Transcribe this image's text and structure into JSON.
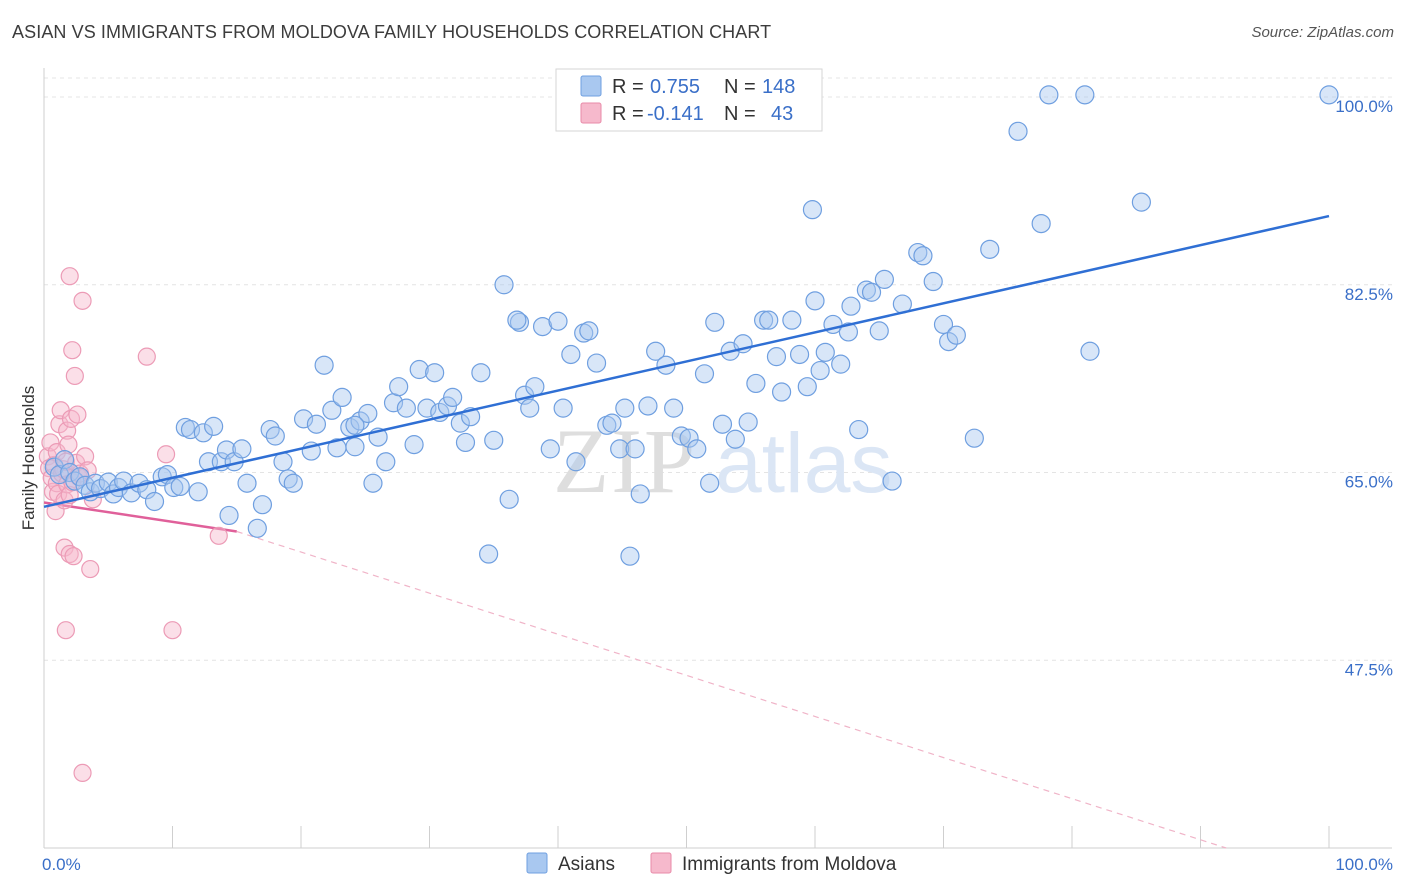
{
  "header": {
    "title": "ASIAN VS IMMIGRANTS FROM MOLDOVA FAMILY HOUSEHOLDS CORRELATION CHART",
    "source": "Source: ZipAtlas.com"
  },
  "watermark": {
    "zip": "ZIP",
    "atlas": "atlas"
  },
  "legend": {
    "rows": [
      {
        "r_label": "R = ",
        "r_value": "0.755",
        "n_label": "N = ",
        "n_value": "148",
        "color": "#a9c8f0",
        "stroke": "#6f9fe0"
      },
      {
        "r_label": "R = ",
        "r_value": "-0.141",
        "n_label": "N = ",
        "n_value": "43",
        "color": "#f6b9cc",
        "stroke": "#e88aa8"
      }
    ]
  },
  "bottom_legend": [
    {
      "label": "Asians",
      "color": "#a9c8f0",
      "stroke": "#6f9fe0"
    },
    {
      "label": "Immigrants from Moldova",
      "color": "#f6b9cc",
      "stroke": "#e88aa8"
    }
  ],
  "chart_data": {
    "type": "scatter",
    "ylabel": "Family Households",
    "xlim": [
      0,
      100
    ],
    "ylim": [
      30,
      100
    ],
    "x_tick_labels": [
      "0.0%",
      "100.0%"
    ],
    "y_ticks": [
      {
        "value": 47.5,
        "label": "47.5%"
      },
      {
        "value": 65.0,
        "label": "65.0%"
      },
      {
        "value": 82.5,
        "label": "82.5%"
      },
      {
        "value": 100.0,
        "label": "100.0%"
      }
    ],
    "grid": "horizontal dashed",
    "colors": {
      "asians": "#2f6fd4",
      "moldova": "#e0609a"
    },
    "series": [
      {
        "name": "Asians",
        "trend": {
          "x": [
            0,
            100
          ],
          "y": [
            61.8,
            88.9
          ]
        },
        "points": [
          [
            0.8,
            65.5
          ],
          [
            1.2,
            64.8
          ],
          [
            1.6,
            66.2
          ],
          [
            2.0,
            65.0
          ],
          [
            2.4,
            64.2
          ],
          [
            2.8,
            64.6
          ],
          [
            3.2,
            63.8
          ],
          [
            3.6,
            63.2
          ],
          [
            4.0,
            64.0
          ],
          [
            4.4,
            63.5
          ],
          [
            5.0,
            64.1
          ],
          [
            5.4,
            63.0
          ],
          [
            5.8,
            63.6
          ],
          [
            6.2,
            64.2
          ],
          [
            6.8,
            63.1
          ],
          [
            7.4,
            64.0
          ],
          [
            8.0,
            63.4
          ],
          [
            8.6,
            62.3
          ],
          [
            9.2,
            64.6
          ],
          [
            9.6,
            64.8
          ],
          [
            10.1,
            63.6
          ],
          [
            10.6,
            63.7
          ],
          [
            11.0,
            69.2
          ],
          [
            11.4,
            69.0
          ],
          [
            12.0,
            63.2
          ],
          [
            12.4,
            68.7
          ],
          [
            12.8,
            66.0
          ],
          [
            13.2,
            69.3
          ],
          [
            13.8,
            66.0
          ],
          [
            14.2,
            67.1
          ],
          [
            14.4,
            61.0
          ],
          [
            14.8,
            66.0
          ],
          [
            15.4,
            67.2
          ],
          [
            15.8,
            64.0
          ],
          [
            16.6,
            59.8
          ],
          [
            17.0,
            62.0
          ],
          [
            17.6,
            69.0
          ],
          [
            18.0,
            68.4
          ],
          [
            18.6,
            66.0
          ],
          [
            19.0,
            64.4
          ],
          [
            19.4,
            64.0
          ],
          [
            20.2,
            70.0
          ],
          [
            20.8,
            67.0
          ],
          [
            21.2,
            69.5
          ],
          [
            21.8,
            75.0
          ],
          [
            22.4,
            70.8
          ],
          [
            22.8,
            67.3
          ],
          [
            23.2,
            72.0
          ],
          [
            23.8,
            69.2
          ],
          [
            24.2,
            67.4
          ],
          [
            24.6,
            69.8
          ],
          [
            25.2,
            70.5
          ],
          [
            25.6,
            64.0
          ],
          [
            26.0,
            68.3
          ],
          [
            26.6,
            66.0
          ],
          [
            27.2,
            71.5
          ],
          [
            27.6,
            73.0
          ],
          [
            28.2,
            71.0
          ],
          [
            28.8,
            67.6
          ],
          [
            29.2,
            74.6
          ],
          [
            29.8,
            71.0
          ],
          [
            30.4,
            74.3
          ],
          [
            30.8,
            70.6
          ],
          [
            31.4,
            71.2
          ],
          [
            31.8,
            72.0
          ],
          [
            32.4,
            69.6
          ],
          [
            32.8,
            67.8
          ],
          [
            33.2,
            70.2
          ],
          [
            34.0,
            74.3
          ],
          [
            34.6,
            57.4
          ],
          [
            35.0,
            68.0
          ],
          [
            35.8,
            82.5
          ],
          [
            36.2,
            62.5
          ],
          [
            37.0,
            79.0
          ],
          [
            37.4,
            72.2
          ],
          [
            37.8,
            71.0
          ],
          [
            38.2,
            73.0
          ],
          [
            38.8,
            78.6
          ],
          [
            39.4,
            67.2
          ],
          [
            40.0,
            79.1
          ],
          [
            40.4,
            71.0
          ],
          [
            41.0,
            76.0
          ],
          [
            41.4,
            66.0
          ],
          [
            42.0,
            78.0
          ],
          [
            42.4,
            78.2
          ],
          [
            43.0,
            75.2
          ],
          [
            43.8,
            69.4
          ],
          [
            44.2,
            69.6
          ],
          [
            44.8,
            67.2
          ],
          [
            45.2,
            71.0
          ],
          [
            45.6,
            57.2
          ],
          [
            46.0,
            67.2
          ],
          [
            46.4,
            63.0
          ],
          [
            47.0,
            71.2
          ],
          [
            47.6,
            76.3
          ],
          [
            48.4,
            75.0
          ],
          [
            49.0,
            71.0
          ],
          [
            49.6,
            68.4
          ],
          [
            50.2,
            68.2
          ],
          [
            50.8,
            67.2
          ],
          [
            51.4,
            74.2
          ],
          [
            51.8,
            64.0
          ],
          [
            52.2,
            79.0
          ],
          [
            52.8,
            69.5
          ],
          [
            53.4,
            76.3
          ],
          [
            53.8,
            68.1
          ],
          [
            54.4,
            77.0
          ],
          [
            54.8,
            69.7
          ],
          [
            55.4,
            73.3
          ],
          [
            56.0,
            79.2
          ],
          [
            56.4,
            79.2
          ],
          [
            57.0,
            75.8
          ],
          [
            57.4,
            72.5
          ],
          [
            58.2,
            79.2
          ],
          [
            58.8,
            76.0
          ],
          [
            59.4,
            73.0
          ],
          [
            60.0,
            81.0
          ],
          [
            60.4,
            74.5
          ],
          [
            60.8,
            76.2
          ],
          [
            61.4,
            78.8
          ],
          [
            62.0,
            75.1
          ],
          [
            62.6,
            78.1
          ],
          [
            62.8,
            80.5
          ],
          [
            63.4,
            69.0
          ],
          [
            64.0,
            82.0
          ],
          [
            64.4,
            81.8
          ],
          [
            65.0,
            78.2
          ],
          [
            65.4,
            83.0
          ],
          [
            66.0,
            64.2
          ],
          [
            66.8,
            80.7
          ],
          [
            68.0,
            85.5
          ],
          [
            68.4,
            85.2
          ],
          [
            69.2,
            82.8
          ],
          [
            70.0,
            78.8
          ],
          [
            70.4,
            77.2
          ],
          [
            71.0,
            77.8
          ],
          [
            72.4,
            68.2
          ],
          [
            73.6,
            85.8
          ],
          [
            75.8,
            96.8
          ],
          [
            77.6,
            88.2
          ],
          [
            78.2,
            100.2
          ],
          [
            81.0,
            100.2
          ],
          [
            81.4,
            76.3
          ],
          [
            85.4,
            90.2
          ],
          [
            100.0,
            100.2
          ],
          [
            59.8,
            89.5
          ],
          [
            24.2,
            69.4
          ],
          [
            36.8,
            79.2
          ]
        ]
      },
      {
        "name": "Immigrants from Moldova",
        "trend": {
          "x": [
            0,
            15
          ],
          "y": [
            62.2,
            59.5
          ],
          "ext_x": [
            15,
            92
          ],
          "ext_y": [
            59.5,
            30
          ]
        },
        "points": [
          [
            0.3,
            66.5
          ],
          [
            0.4,
            65.4
          ],
          [
            0.5,
            67.8
          ],
          [
            0.6,
            64.5
          ],
          [
            0.7,
            63.2
          ],
          [
            0.8,
            65.7
          ],
          [
            0.9,
            61.4
          ],
          [
            1.0,
            64.0
          ],
          [
            1.0,
            66.9
          ],
          [
            1.1,
            63.0
          ],
          [
            1.2,
            69.5
          ],
          [
            1.3,
            70.8
          ],
          [
            1.4,
            64.9
          ],
          [
            1.5,
            65.3
          ],
          [
            1.6,
            58.0
          ],
          [
            1.6,
            62.4
          ],
          [
            1.7,
            66.0
          ],
          [
            1.7,
            50.3
          ],
          [
            1.8,
            63.9
          ],
          [
            1.8,
            68.9
          ],
          [
            1.9,
            67.6
          ],
          [
            2.0,
            57.4
          ],
          [
            2.0,
            62.9
          ],
          [
            2.1,
            70.0
          ],
          [
            2.2,
            76.4
          ],
          [
            2.2,
            64.1
          ],
          [
            2.3,
            57.2
          ],
          [
            2.4,
            74.0
          ],
          [
            2.5,
            65.9
          ],
          [
            2.6,
            70.4
          ],
          [
            2.7,
            64.6
          ],
          [
            2.8,
            64.9
          ],
          [
            3.0,
            81.0
          ],
          [
            3.0,
            37.0
          ],
          [
            3.2,
            66.5
          ],
          [
            3.4,
            65.2
          ],
          [
            3.6,
            56.0
          ],
          [
            3.8,
            62.5
          ],
          [
            8.0,
            75.8
          ],
          [
            9.5,
            66.7
          ],
          [
            10.0,
            50.3
          ],
          [
            13.6,
            59.1
          ],
          [
            2.0,
            83.3
          ]
        ]
      }
    ]
  }
}
